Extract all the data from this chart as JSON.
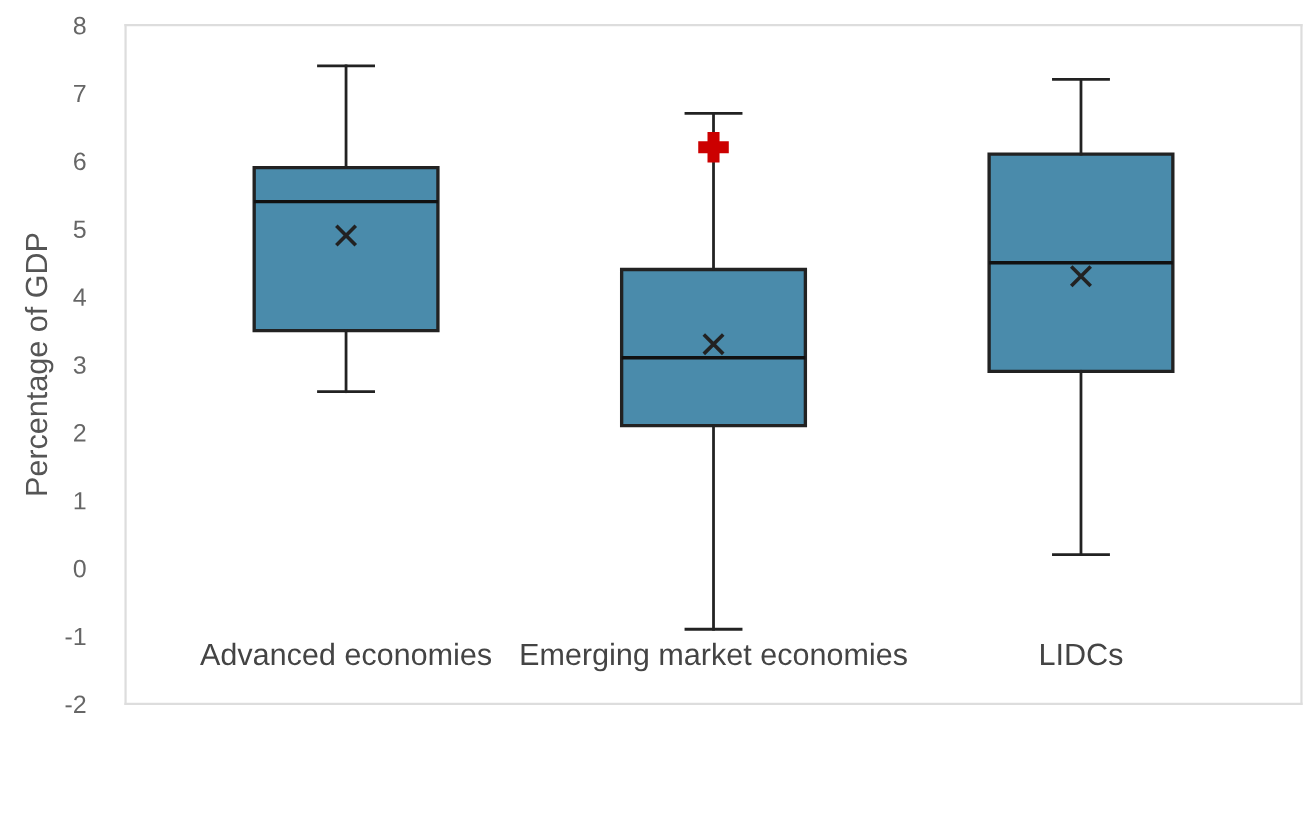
{
  "chart_data": {
    "type": "box",
    "ylabel": "Percentage of GDP",
    "categories": [
      "Advanced economies",
      "Emerging market economies",
      "LIDCs"
    ],
    "boxes": [
      {
        "low": 2.6,
        "q1": 3.5,
        "median": 5.4,
        "q3": 5.9,
        "high": 7.4,
        "mean": 4.9
      },
      {
        "low": -0.9,
        "q1": 2.1,
        "median": 3.1,
        "q3": 4.4,
        "high": 6.7,
        "mean": 3.3,
        "outliers": [
          6.2
        ]
      },
      {
        "low": 0.2,
        "q1": 2.9,
        "median": 4.5,
        "q3": 6.1,
        "high": 7.2,
        "mean": 4.3
      }
    ],
    "color": "#4a8bab",
    "ylim": [
      -2,
      8
    ],
    "yticks": [
      -2,
      -1,
      0,
      1,
      2,
      3,
      4,
      5,
      6,
      7,
      8
    ],
    "grid": false,
    "legend": false
  }
}
